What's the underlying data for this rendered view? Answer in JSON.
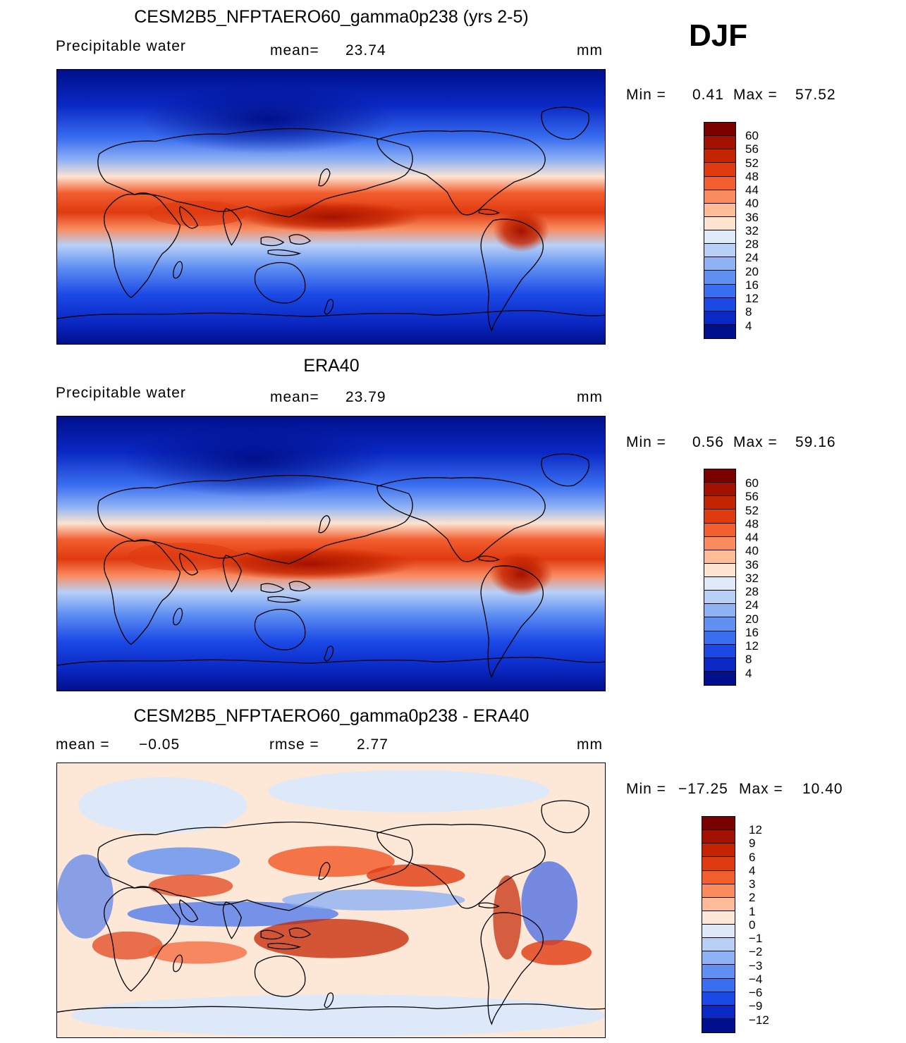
{
  "season": "DJF",
  "unit": "mm",
  "panels": [
    {
      "title": "CESM2B5_NFPTAERO60_gamma0p238 (yrs 2-5)",
      "left_label": "Precipitable water",
      "stat1_label": "mean=",
      "stat1_value": "23.74",
      "stat2_label": "",
      "stat2_value": "",
      "min_label": "Min =",
      "min_value": "0.41",
      "max_label": "Max =",
      "max_value": "57.52",
      "colorbar_labels": [
        "60",
        "56",
        "52",
        "48",
        "44",
        "40",
        "36",
        "32",
        "28",
        "24",
        "20",
        "16",
        "12",
        "8",
        "4"
      ]
    },
    {
      "title": "ERA40",
      "left_label": "Precipitable water",
      "stat1_label": "mean=",
      "stat1_value": "23.79",
      "stat2_label": "",
      "stat2_value": "",
      "min_label": "Min =",
      "min_value": "0.56",
      "max_label": "Max =",
      "max_value": "59.16",
      "colorbar_labels": [
        "60",
        "56",
        "52",
        "48",
        "44",
        "40",
        "36",
        "32",
        "28",
        "24",
        "20",
        "16",
        "12",
        "8",
        "4"
      ]
    },
    {
      "title": "CESM2B5_NFPTAERO60_gamma0p238 - ERA40",
      "left_label": "mean =",
      "stat1_label": "",
      "stat1_value": "−0.05",
      "stat2_label": "rmse =",
      "stat2_value": "2.77",
      "min_label": "Min =",
      "min_value": "−17.25",
      "max_label": "Max =",
      "max_value": "10.40",
      "colorbar_labels": [
        "12",
        "9",
        "6",
        "4",
        "3",
        "2",
        "1",
        "0",
        "−1",
        "−2",
        "−3",
        "−4",
        "−6",
        "−9",
        "−12"
      ]
    }
  ],
  "colors": {
    "abs_scale": [
      "#7b0000",
      "#a31200",
      "#c42400",
      "#e03a10",
      "#f25e2e",
      "#f98b5e",
      "#fdbb97",
      "#fde3d0",
      "#dfe9f8",
      "#b8d0f6",
      "#8fb2f4",
      "#6090f2",
      "#3a6ef0",
      "#1b49e6",
      "#0a28c4",
      "#00108c"
    ],
    "diff_scale": [
      "#7b0000",
      "#a31200",
      "#c42400",
      "#e03a10",
      "#f25e2e",
      "#f98b5e",
      "#fdbb97",
      "#fde8d7",
      "#dde9f8",
      "#b8d0f6",
      "#8fb2f4",
      "#6090f2",
      "#3a6ef0",
      "#1b49e6",
      "#0a28c4",
      "#00108c"
    ]
  },
  "map_icon": "world-map-cylindrical-equidistant"
}
